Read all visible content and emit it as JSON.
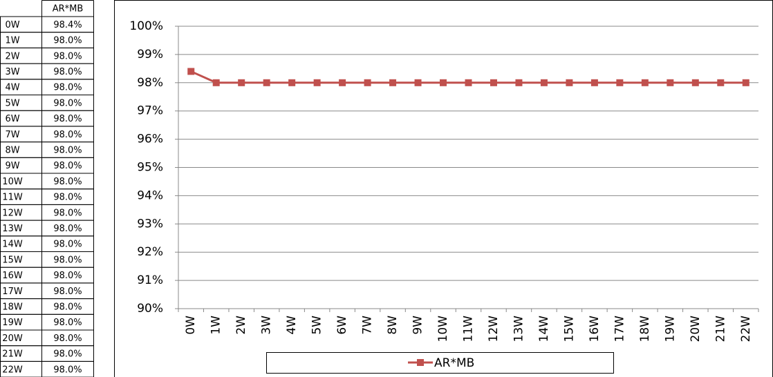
{
  "table": {
    "header": "AR*MB",
    "rows": [
      [
        "0W",
        "98.4%"
      ],
      [
        "1W",
        "98.0%"
      ],
      [
        "2W",
        "98.0%"
      ],
      [
        "3W",
        "98.0%"
      ],
      [
        "4W",
        "98.0%"
      ],
      [
        "5W",
        "98.0%"
      ],
      [
        "6W",
        "98.0%"
      ],
      [
        "7W",
        "98.0%"
      ],
      [
        "8W",
        "98.0%"
      ],
      [
        "9W",
        "98.0%"
      ],
      [
        "10W",
        "98.0%"
      ],
      [
        "11W",
        "98.0%"
      ],
      [
        "12W",
        "98.0%"
      ],
      [
        "13W",
        "98.0%"
      ],
      [
        "14W",
        "98.0%"
      ],
      [
        "15W",
        "98.0%"
      ],
      [
        "16W",
        "98.0%"
      ],
      [
        "17W",
        "98.0%"
      ],
      [
        "18W",
        "98.0%"
      ],
      [
        "19W",
        "98.0%"
      ],
      [
        "20W",
        "98.0%"
      ],
      [
        "21W",
        "98.0%"
      ],
      [
        "22W",
        "98.0%"
      ]
    ]
  },
  "chart_data": {
    "type": "line",
    "categories": [
      "0W",
      "1W",
      "2W",
      "3W",
      "4W",
      "5W",
      "6W",
      "7W",
      "8W",
      "9W",
      "10W",
      "11W",
      "12W",
      "13W",
      "14W",
      "15W",
      "16W",
      "17W",
      "18W",
      "19W",
      "20W",
      "21W",
      "22W"
    ],
    "series": [
      {
        "name": "AR*MB",
        "color": "#c0504d",
        "values": [
          98.4,
          98.0,
          98.0,
          98.0,
          98.0,
          98.0,
          98.0,
          98.0,
          98.0,
          98.0,
          98.0,
          98.0,
          98.0,
          98.0,
          98.0,
          98.0,
          98.0,
          98.0,
          98.0,
          98.0,
          98.0,
          98.0,
          98.0
        ]
      }
    ],
    "ylim": [
      90,
      100
    ],
    "yticks": [
      {
        "value": 90,
        "label": "90%"
      },
      {
        "value": 91,
        "label": "91%"
      },
      {
        "value": 92,
        "label": "92%"
      },
      {
        "value": 93,
        "label": "93%"
      },
      {
        "value": 94,
        "label": "94%"
      },
      {
        "value": 95,
        "label": "95%"
      },
      {
        "value": 96,
        "label": "96%"
      },
      {
        "value": 97,
        "label": "97%"
      },
      {
        "value": 98,
        "label": "98%"
      },
      {
        "value": 99,
        "label": "99%"
      },
      {
        "value": 100,
        "label": "100%"
      }
    ],
    "grid": true,
    "legend": "bottom"
  }
}
